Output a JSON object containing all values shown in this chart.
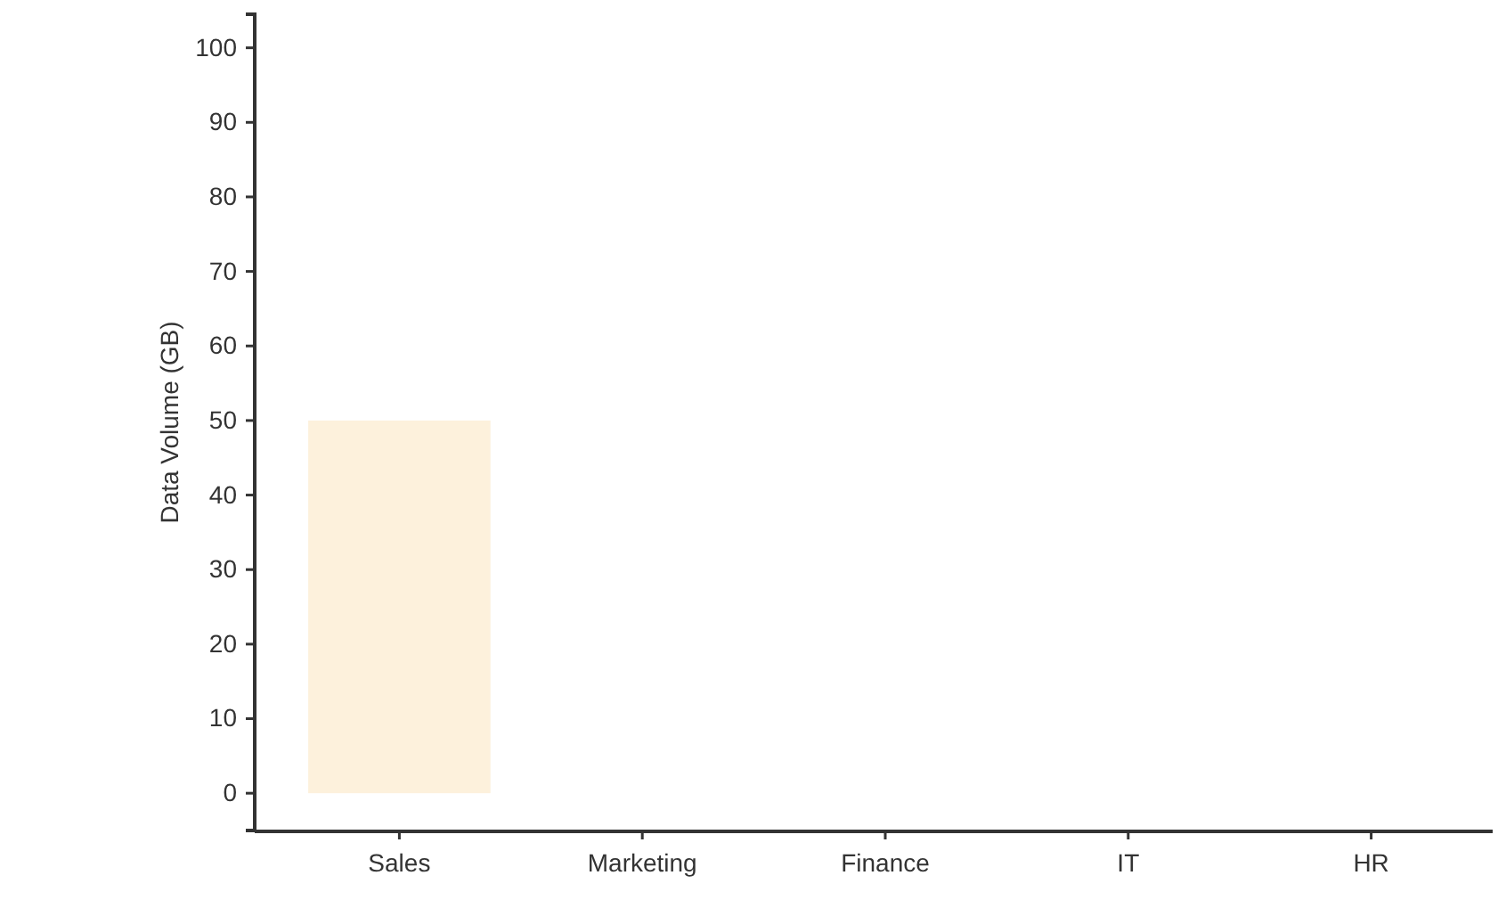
{
  "chart_data": {
    "type": "bar",
    "ylabel": "Data Volume (GB)",
    "categories": [
      "Sales",
      "Marketing",
      "Finance",
      "IT",
      "HR"
    ],
    "values": [
      50,
      null,
      null,
      null,
      null
    ],
    "color": "#fdf1dc",
    "ylim": [
      -5,
      104.5
    ],
    "yticks": [
      0,
      10,
      20,
      30,
      40,
      50,
      60,
      70,
      80,
      90,
      100
    ]
  }
}
